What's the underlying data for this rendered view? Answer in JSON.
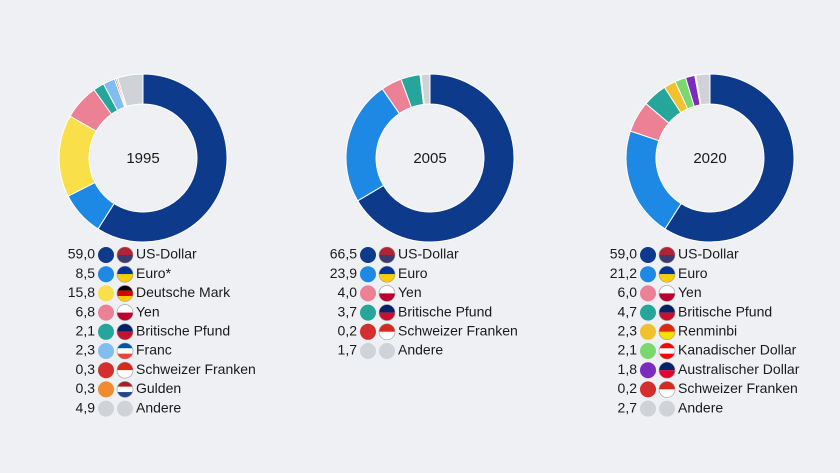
{
  "chart_data": [
    {
      "type": "pie",
      "donut": true,
      "title": "1995",
      "categories": [
        "US-Dollar",
        "Euro*",
        "Deutsche Mark",
        "Yen",
        "Britische Pfund",
        "Franc",
        "Schweizer Franken",
        "Gulden",
        "Andere"
      ],
      "values": [
        59.0,
        8.5,
        15.8,
        6.8,
        2.1,
        2.3,
        0.3,
        0.3,
        4.9
      ],
      "value_labels": [
        "59,0",
        "8,5",
        "15,8",
        "6,8",
        "2,1",
        "2,3",
        "0,3",
        "0,3",
        "4,9"
      ],
      "colors": [
        "#0d3a8a",
        "#1e88e5",
        "#f9e04b",
        "#ec8095",
        "#26a69a",
        "#82bdf0",
        "#d32f2f",
        "#f28b30",
        "#cfd3d8"
      ]
    },
    {
      "type": "pie",
      "donut": true,
      "title": "2005",
      "categories": [
        "US-Dollar",
        "Euro",
        "Yen",
        "Britische Pfund",
        "Schweizer Franken",
        "Andere"
      ],
      "values": [
        66.5,
        23.9,
        4.0,
        3.7,
        0.2,
        1.7
      ],
      "value_labels": [
        "66,5",
        "23,9",
        "4,0",
        "3,7",
        "0,2",
        "1,7"
      ],
      "colors": [
        "#0d3a8a",
        "#1e88e5",
        "#ec8095",
        "#26a69a",
        "#d32f2f",
        "#cfd3d8"
      ]
    },
    {
      "type": "pie",
      "donut": true,
      "title": "2020",
      "categories": [
        "US-Dollar",
        "Euro",
        "Yen",
        "Britische Pfund",
        "Renminbi",
        "Kanadischer Dollar",
        "Australischer Dollar",
        "Schweizer Franken",
        "Andere"
      ],
      "values": [
        59.0,
        21.2,
        6.0,
        4.7,
        2.3,
        2.1,
        1.8,
        0.2,
        2.7
      ],
      "value_labels": [
        "59,0",
        "21,2",
        "6,0",
        "4,7",
        "2,3",
        "2,1",
        "1,8",
        "0,2",
        "2,7"
      ],
      "colors": [
        "#0d3a8a",
        "#1e88e5",
        "#ec8095",
        "#26a69a",
        "#f2c12e",
        "#7bd86e",
        "#7b2cbf",
        "#d32f2f",
        "#cfd3d8"
      ]
    }
  ]
}
